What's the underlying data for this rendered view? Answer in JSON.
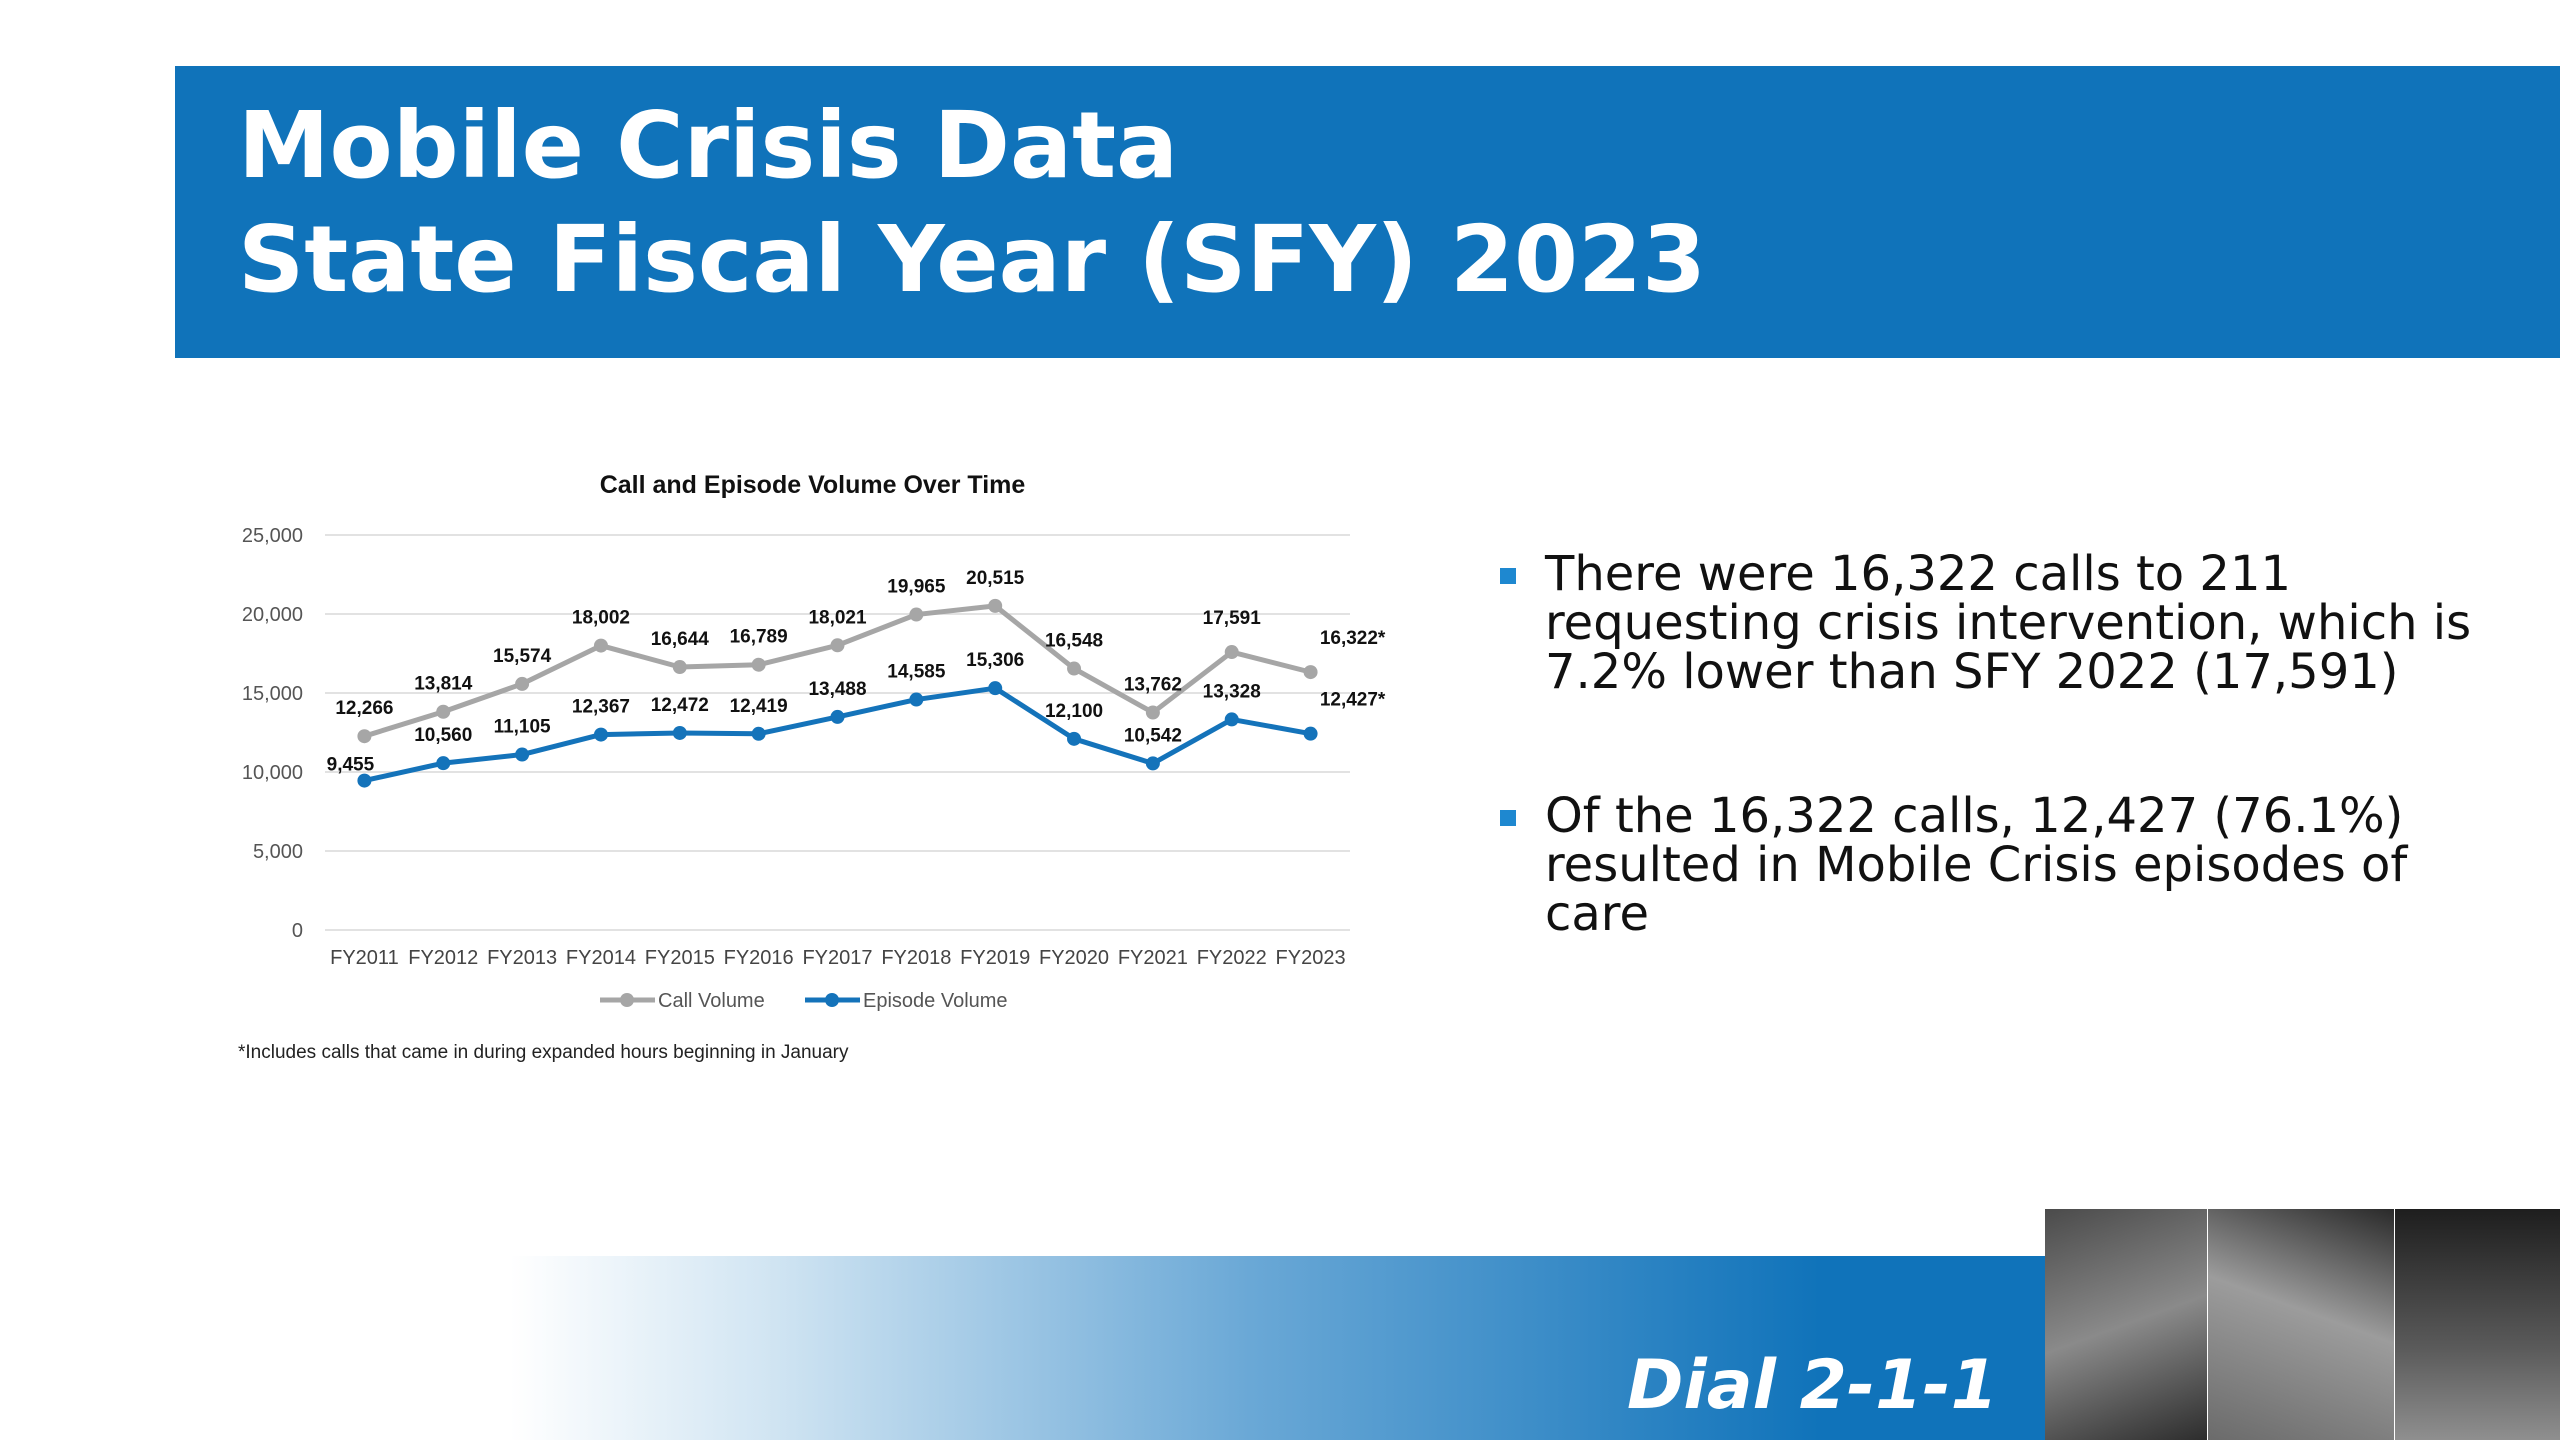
{
  "header": {
    "title_line1": "Mobile Crisis Data",
    "title_line2": "State Fiscal Year (SFY) 2023",
    "background": "#1073BA"
  },
  "chart_data": {
    "type": "line",
    "title": "Call and Episode Volume Over Time",
    "categories": [
      "FY2011",
      "FY2012",
      "FY2013",
      "FY2014",
      "FY2015",
      "FY2016",
      "FY2017",
      "FY2018",
      "FY2019",
      "FY2020",
      "FY2021",
      "FY2022",
      "FY2023"
    ],
    "series": [
      {
        "name": "Call Volume",
        "color": "#A6A6A6",
        "values": [
          12266,
          13814,
          15574,
          18002,
          16644,
          16789,
          18021,
          19965,
          20515,
          16548,
          13762,
          17591,
          16322
        ],
        "labels": [
          "12,266",
          "13,814",
          "15,574",
          "18,002",
          "16,644",
          "16,789",
          "18,021",
          "19,965",
          "20,515",
          "16,548",
          "13,762",
          "17,591",
          "16,322*"
        ]
      },
      {
        "name": "Episode Volume",
        "color": "#1473BA",
        "values": [
          9455,
          10560,
          11105,
          12367,
          12472,
          12419,
          13488,
          14585,
          15306,
          12100,
          10542,
          13328,
          12427
        ],
        "labels": [
          "9,455",
          "10,560",
          "11,105",
          "12,367",
          "12,472",
          "12,419",
          "13,488",
          "14,585",
          "15,306",
          "12,100",
          "10,542",
          "13,328",
          "12,427*"
        ]
      }
    ],
    "ylim": [
      0,
      25000
    ],
    "yticks": [
      0,
      5000,
      10000,
      15000,
      20000,
      25000
    ],
    "ytick_labels": [
      "0",
      "5,000",
      "10,000",
      "15,000",
      "20,000",
      "25,000"
    ],
    "grid": true,
    "legend": "bottom",
    "xlabel": "",
    "ylabel": ""
  },
  "footnote": "*Includes calls that came in during expanded hours beginning in January",
  "bullets": [
    "There were 16,322 calls to 211 requesting crisis intervention, which is 7.2% lower than SFY 2022 (17,591)",
    "Of the 16,322 calls, 12,427 (76.1%) resulted in Mobile Crisis episodes of care"
  ],
  "footer": {
    "text": "Dial 2-1-1"
  },
  "photos": [
    "photo-of-boy-with-hand-on-head",
    "photo-of-girl-leaning-forward",
    "photo-of-boy-face-closeup"
  ]
}
